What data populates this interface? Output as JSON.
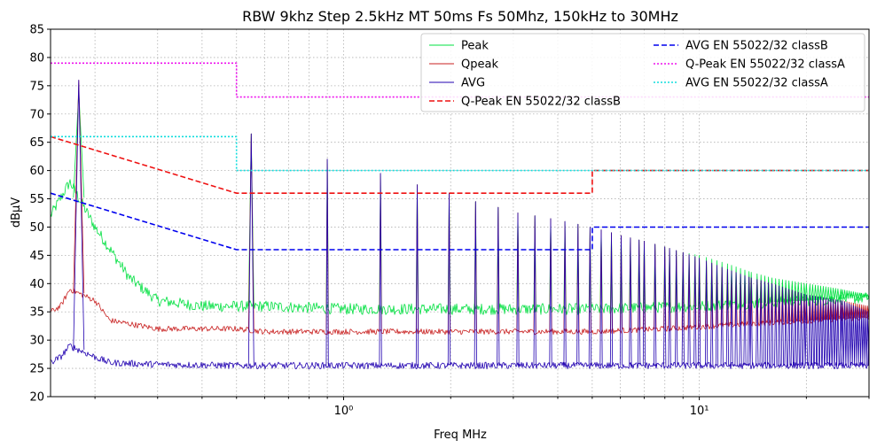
{
  "chart_data": {
    "type": "line",
    "title": "RBW 9khz Step 2.5kHz MT 50ms Fs 50Mhz, 150kHz to 30MHz",
    "xlabel": "Freq MHz",
    "ylabel": "dBµV",
    "x_scale": "log",
    "xlim": [
      0.15,
      30
    ],
    "ylim": [
      20,
      85
    ],
    "grid": true,
    "x_tick_labels": [
      {
        "value": 1,
        "label": "10⁰"
      },
      {
        "value": 10,
        "label": "10¹"
      }
    ],
    "y_ticks": [
      20,
      25,
      30,
      35,
      40,
      45,
      50,
      55,
      60,
      65,
      70,
      75,
      80,
      85
    ],
    "legend": {
      "placement": "top-right",
      "columns": 2
    },
    "series": [
      {
        "name": "Peak",
        "color": "#00e040",
        "style": "solid",
        "width": 0.8,
        "noise_floor": [
          [
            0.15,
            52
          ],
          [
            0.17,
            58
          ],
          [
            0.2,
            50
          ],
          [
            0.25,
            41
          ],
          [
            0.3,
            37
          ],
          [
            0.4,
            36
          ],
          [
            0.5,
            36
          ],
          [
            0.6,
            36
          ],
          [
            1.0,
            35.5
          ],
          [
            5,
            35.5
          ],
          [
            10,
            36
          ],
          [
            20,
            37
          ],
          [
            30,
            37.5
          ]
        ],
        "peaks": [
          [
            0.18,
            74
          ],
          [
            0.55,
            66.5
          ],
          [
            0.9,
            62
          ],
          [
            1.27,
            59.5
          ],
          [
            1.61,
            57.5
          ],
          [
            1.98,
            56
          ],
          [
            2.35,
            54.5
          ],
          [
            2.72,
            53.5
          ],
          [
            3.09,
            52.5
          ],
          [
            3.45,
            52
          ],
          [
            3.82,
            51.5
          ],
          [
            4.19,
            51
          ],
          [
            4.56,
            50.5
          ],
          [
            4.93,
            50
          ],
          [
            5.3,
            49.5
          ],
          [
            5.66,
            49
          ],
          [
            6.03,
            48.5
          ],
          [
            7,
            47.5
          ],
          [
            8,
            46.5
          ],
          [
            9,
            45.5
          ],
          [
            10,
            45
          ],
          [
            12,
            43.5
          ],
          [
            14,
            42
          ],
          [
            16,
            41
          ],
          [
            20,
            40
          ],
          [
            25,
            39
          ],
          [
            30,
            38
          ]
        ]
      },
      {
        "name": "Qpeak",
        "color": "#c82020",
        "style": "solid",
        "width": 0.8,
        "noise_floor": [
          [
            0.15,
            35
          ],
          [
            0.16,
            36
          ],
          [
            0.17,
            39
          ],
          [
            0.2,
            37
          ],
          [
            0.22,
            33.5
          ],
          [
            0.3,
            32
          ],
          [
            0.5,
            32
          ],
          [
            0.6,
            31.5
          ],
          [
            1.0,
            31.5
          ],
          [
            5,
            31.5
          ],
          [
            8,
            32
          ],
          [
            15,
            33
          ],
          [
            30,
            34
          ]
        ],
        "peaks": [
          [
            0.18,
            76
          ],
          [
            0.55,
            66.5
          ],
          [
            0.9,
            62
          ],
          [
            1.27,
            59.5
          ],
          [
            1.61,
            57.5
          ],
          [
            1.98,
            56
          ],
          [
            2.35,
            54.5
          ],
          [
            2.72,
            53.5
          ],
          [
            3.09,
            52.5
          ],
          [
            3.45,
            52
          ],
          [
            3.82,
            51.5
          ],
          [
            4.19,
            51
          ],
          [
            4.56,
            50.5
          ],
          [
            4.93,
            50
          ],
          [
            5.3,
            49.5
          ],
          [
            5.66,
            49
          ],
          [
            6.03,
            48.5
          ],
          [
            7,
            47.5
          ],
          [
            8,
            46.5
          ],
          [
            9,
            45.5
          ],
          [
            10,
            44.5
          ],
          [
            12,
            42.5
          ],
          [
            14,
            41
          ],
          [
            16,
            40
          ],
          [
            20,
            38
          ],
          [
            25,
            37
          ],
          [
            30,
            36
          ]
        ]
      },
      {
        "name": "AVG",
        "color": "#2000b0",
        "style": "solid",
        "width": 0.8,
        "noise_floor": [
          [
            0.15,
            26
          ],
          [
            0.16,
            27
          ],
          [
            0.17,
            29
          ],
          [
            0.2,
            27
          ],
          [
            0.22,
            26
          ],
          [
            0.3,
            25.7
          ],
          [
            0.5,
            25.5
          ],
          [
            1.0,
            25.5
          ],
          [
            5,
            25.5
          ],
          [
            10,
            25.5
          ],
          [
            30,
            25.5
          ]
        ],
        "peaks": [
          [
            0.18,
            76
          ],
          [
            0.55,
            66.5
          ],
          [
            0.9,
            62
          ],
          [
            1.27,
            59.5
          ],
          [
            1.61,
            57.5
          ],
          [
            1.98,
            56
          ],
          [
            2.35,
            54.5
          ],
          [
            2.72,
            53.5
          ],
          [
            3.09,
            52.5
          ],
          [
            3.45,
            52
          ],
          [
            3.82,
            51.5
          ],
          [
            4.19,
            51
          ],
          [
            4.56,
            50.5
          ],
          [
            4.93,
            50
          ],
          [
            5.3,
            49.5
          ],
          [
            5.66,
            49
          ],
          [
            6.03,
            48.5
          ],
          [
            7,
            47.5
          ],
          [
            8,
            46.5
          ],
          [
            9,
            45.5
          ],
          [
            10,
            44.5
          ],
          [
            12,
            42.5
          ],
          [
            14,
            41
          ],
          [
            16,
            40
          ],
          [
            20,
            38
          ],
          [
            25,
            37
          ],
          [
            30,
            35
          ]
        ]
      },
      {
        "name": "Q-Peak EN 55022/32 classB",
        "color": "#ee1111",
        "style": "dashed",
        "width": 1.6,
        "points": [
          [
            0.15,
            66
          ],
          [
            0.5,
            56
          ],
          [
            5,
            56
          ],
          [
            5,
            60
          ],
          [
            30,
            60
          ]
        ]
      },
      {
        "name": "AVG EN 55022/32 classB",
        "color": "#0000ee",
        "style": "dashed",
        "width": 1.6,
        "points": [
          [
            0.15,
            56
          ],
          [
            0.5,
            46
          ],
          [
            5,
            46
          ],
          [
            5,
            50
          ],
          [
            30,
            50
          ]
        ]
      },
      {
        "name": "Q-Peak EN 55022/32 classA",
        "color": "#ee11ee",
        "style": "dotted",
        "width": 1.6,
        "points": [
          [
            0.15,
            79
          ],
          [
            0.5,
            79
          ],
          [
            0.5,
            73
          ],
          [
            30,
            73
          ]
        ]
      },
      {
        "name": "AVG EN 55022/32 classA",
        "color": "#11dddd",
        "style": "dotted",
        "width": 1.6,
        "points": [
          [
            0.15,
            66
          ],
          [
            0.5,
            66
          ],
          [
            0.5,
            60
          ],
          [
            30,
            60
          ]
        ]
      }
    ]
  }
}
